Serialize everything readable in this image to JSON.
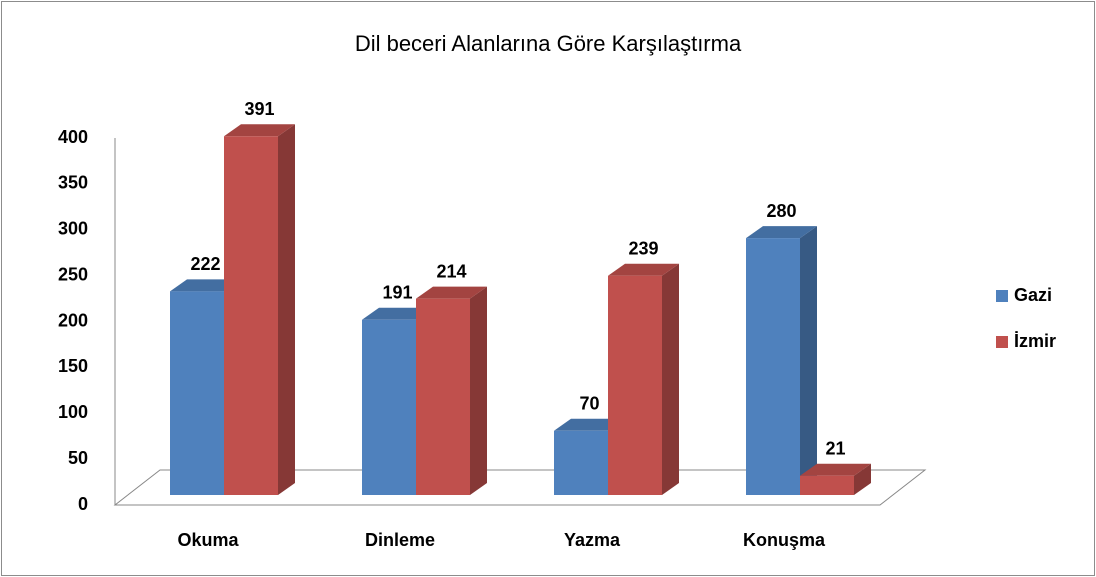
{
  "chart_data": {
    "type": "bar3d",
    "title": "Dil beceri Alanlarına Göre Karşılaştırma",
    "categories": [
      "Okuma",
      "Dinleme",
      "Yazma",
      "Konuşma"
    ],
    "series": [
      {
        "name": "Gazi",
        "color": "#4f81bd",
        "values": [
          222,
          191,
          70,
          280
        ]
      },
      {
        "name": "İzmir",
        "color": "#c0504d",
        "values": [
          391,
          214,
          239,
          21
        ]
      }
    ],
    "ylim": [
      0,
      400
    ],
    "yticks": [
      0,
      50,
      100,
      150,
      200,
      250,
      300,
      350,
      400
    ],
    "grid": false,
    "legend": "right"
  }
}
